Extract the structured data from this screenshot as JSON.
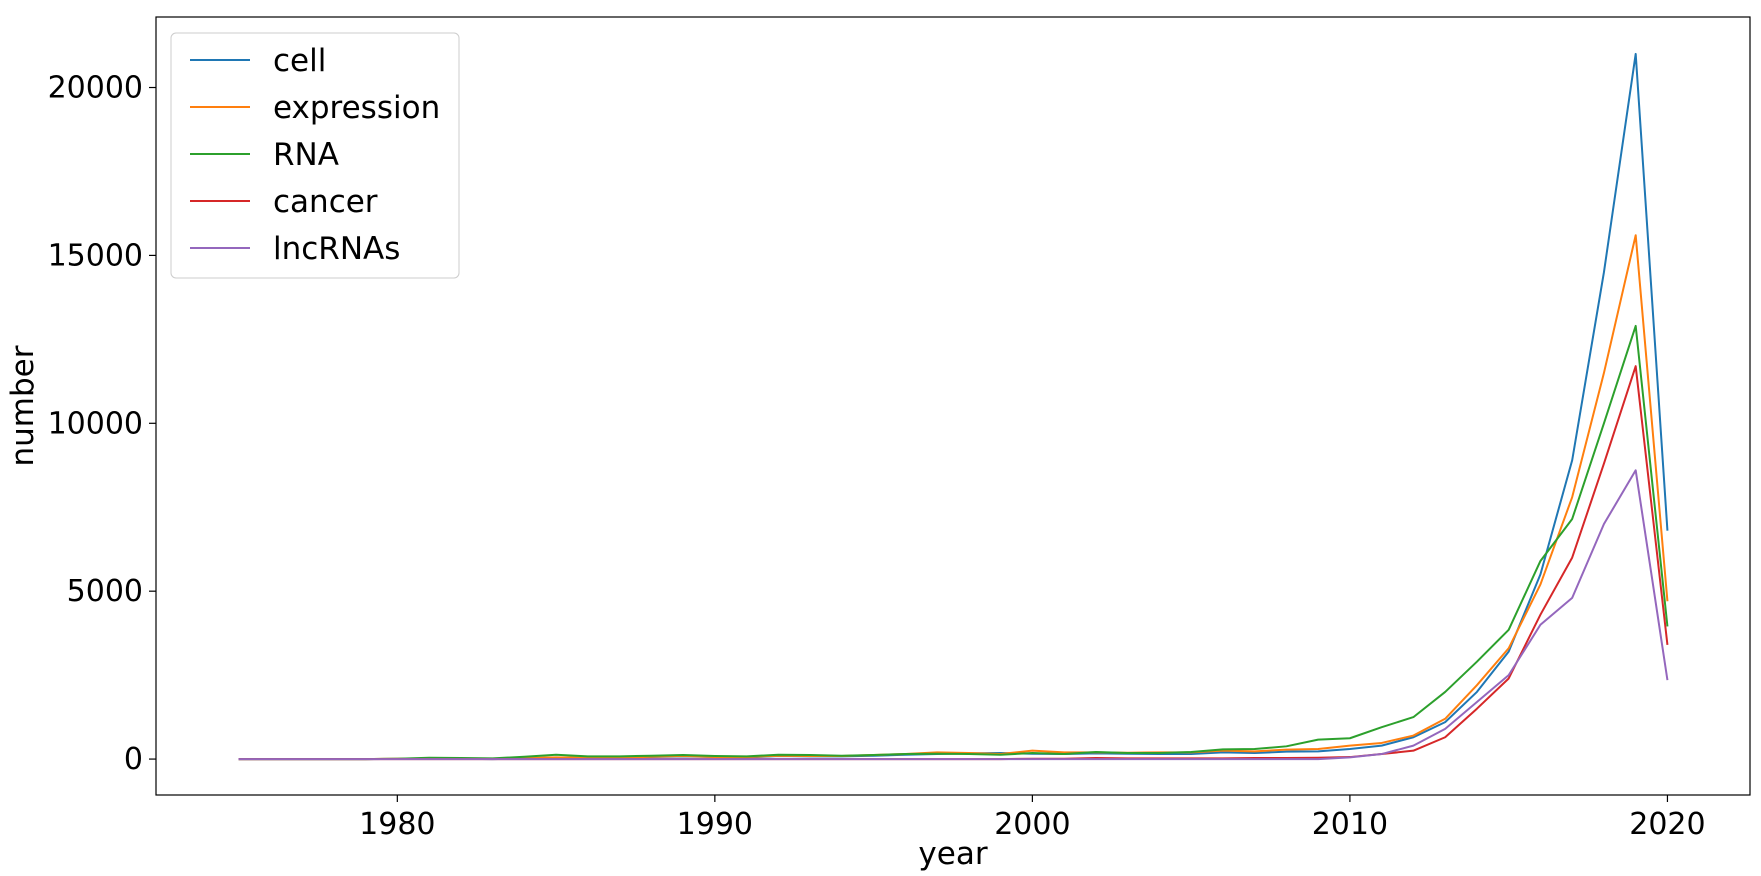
{
  "chart_data": {
    "type": "line",
    "title": "",
    "xlabel": "year",
    "ylabel": "number",
    "xlim": [
      1972.4,
      2022.6
    ],
    "ylim": [
      -1070,
      22100
    ],
    "x_ticks": [
      1980,
      1990,
      2000,
      2010,
      2020
    ],
    "y_ticks": [
      0,
      5000,
      10000,
      15000,
      20000
    ],
    "grid": false,
    "legend_position": "top-left",
    "x": [
      1975,
      1976,
      1977,
      1978,
      1979,
      1980,
      1981,
      1982,
      1983,
      1984,
      1985,
      1986,
      1987,
      1988,
      1989,
      1990,
      1991,
      1992,
      1993,
      1994,
      1995,
      1996,
      1997,
      1998,
      1999,
      2000,
      2001,
      2002,
      2003,
      2004,
      2005,
      2006,
      2007,
      2008,
      2009,
      2010,
      2011,
      2012,
      2013,
      2014,
      2015,
      2016,
      2017,
      2018,
      2019,
      2020
    ],
    "series": [
      {
        "name": "cell",
        "color": "#1f77b4",
        "values": [
          0,
          0,
          0,
          0,
          0,
          5,
          10,
          10,
          0,
          20,
          40,
          30,
          40,
          60,
          80,
          60,
          50,
          90,
          80,
          80,
          100,
          130,
          150,
          170,
          180,
          160,
          150,
          170,
          160,
          150,
          150,
          200,
          180,
          220,
          230,
          300,
          400,
          650,
          1100,
          2000,
          3200,
          5500,
          8900,
          14500,
          21000,
          6800
        ]
      },
      {
        "name": "expression",
        "color": "#ff7f0e",
        "values": [
          0,
          0,
          0,
          0,
          0,
          10,
          20,
          10,
          10,
          30,
          50,
          40,
          40,
          70,
          90,
          60,
          60,
          100,
          90,
          90,
          120,
          150,
          200,
          180,
          150,
          250,
          200,
          200,
          190,
          200,
          200,
          250,
          230,
          280,
          300,
          400,
          480,
          700,
          1200,
          2200,
          3300,
          5200,
          7800,
          11500,
          15600,
          4700
        ]
      },
      {
        "name": "RNA",
        "color": "#2ca02c",
        "values": [
          0,
          0,
          0,
          0,
          0,
          10,
          40,
          30,
          20,
          70,
          130,
          80,
          80,
          100,
          120,
          90,
          80,
          130,
          120,
          100,
          120,
          150,
          160,
          150,
          130,
          180,
          150,
          210,
          180,
          180,
          210,
          290,
          300,
          380,
          580,
          620,
          950,
          1250,
          2000,
          2900,
          3850,
          5900,
          7150,
          10000,
          12900,
          3950
        ]
      },
      {
        "name": "cancer",
        "color": "#d62728",
        "values": [
          0,
          0,
          0,
          0,
          0,
          0,
          0,
          0,
          0,
          0,
          0,
          0,
          0,
          0,
          0,
          0,
          0,
          0,
          0,
          0,
          0,
          0,
          0,
          0,
          0,
          10,
          10,
          30,
          20,
          20,
          20,
          20,
          30,
          30,
          40,
          60,
          150,
          250,
          650,
          1500,
          2400,
          4300,
          6000,
          8800,
          11700,
          3400
        ]
      },
      {
        "name": "lncRNAs",
        "color": "#9467bd",
        "values": [
          0,
          0,
          0,
          0,
          0,
          0,
          0,
          0,
          0,
          0,
          0,
          0,
          0,
          0,
          0,
          0,
          0,
          0,
          0,
          0,
          0,
          0,
          0,
          0,
          0,
          0,
          0,
          0,
          0,
          0,
          0,
          0,
          0,
          0,
          0,
          50,
          150,
          400,
          900,
          1700,
          2500,
          4000,
          4800,
          7000,
          8600,
          2350
        ]
      }
    ]
  }
}
